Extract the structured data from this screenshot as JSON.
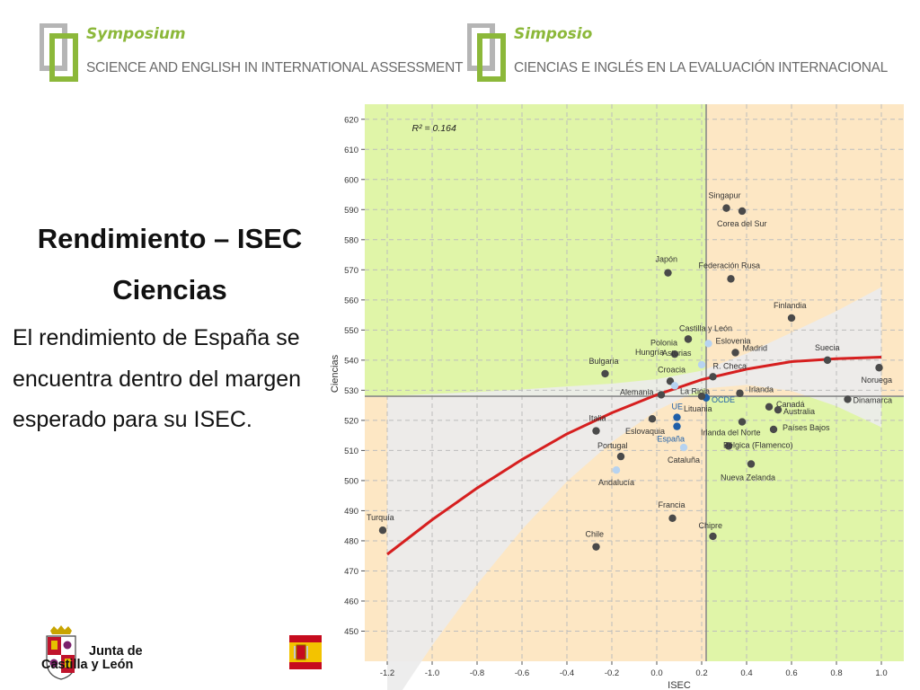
{
  "header": {
    "left": {
      "title": "Symposium",
      "subtitle": "SCIENCE AND ENGLISH IN INTERNATIONAL ASSESSMENT"
    },
    "right": {
      "title": "Simposio",
      "subtitle": "CIENCIAS E INGLÉS EN LA  EVALUACIÓN INTERNACIONAL"
    }
  },
  "slide": {
    "title_line1": "Rendimiento – ISEC",
    "title_line2": "Ciencias",
    "body": "El rendimiento de España se encuentra dentro del margen esperado para su ISEC."
  },
  "footer": {
    "institution_line1": "Junta de",
    "institution_line2": "Castilla y León"
  },
  "colors": {
    "green_zone": "#e0f5a8",
    "orange_zone": "#fde7c4",
    "fit_line": "#d61f1f",
    "point_country": "#4a4a4a",
    "point_region": "#b7d3f0",
    "point_spain": "#1f5fa8",
    "brand_green": "#8cb83a"
  },
  "chart_data": {
    "type": "scatter",
    "xlabel": "ISEC",
    "ylabel": "Ciencias",
    "xlim": [
      -1.3,
      1.1
    ],
    "ylim": [
      440,
      625
    ],
    "x_ticks": [
      "-1.2",
      "-1.0",
      "-0.8",
      "-0.6",
      "-0.4",
      "-0.2",
      "0.0",
      "0.2",
      "0.4",
      "0.6",
      "0.8",
      "1.0"
    ],
    "y_ticks": [
      "450",
      "460",
      "470",
      "480",
      "490",
      "500",
      "510",
      "520",
      "530",
      "540",
      "550",
      "560",
      "570",
      "580",
      "590",
      "600",
      "610",
      "620"
    ],
    "reference_x": 0.22,
    "reference_y": 528,
    "annotation": "R² = 0.164",
    "points": [
      {
        "label": "Singapur",
        "x": 0.31,
        "y": 590.5,
        "kind": "country"
      },
      {
        "label": "Corea del Sur",
        "x": 0.38,
        "y": 589.5,
        "kind": "country"
      },
      {
        "label": "Japón",
        "x": 0.05,
        "y": 569,
        "kind": "country"
      },
      {
        "label": "Federación Rusa",
        "x": 0.33,
        "y": 567,
        "kind": "country"
      },
      {
        "label": "Finlandia",
        "x": 0.6,
        "y": 554,
        "kind": "country"
      },
      {
        "label": "Castilla y León",
        "x": 0.14,
        "y": 547,
        "kind": "country"
      },
      {
        "label": "Polonia",
        "x": 0.14,
        "y": 547,
        "kind": "country"
      },
      {
        "label": "Eslovenia",
        "x": 0.23,
        "y": 545.5,
        "kind": "region"
      },
      {
        "label": "Madrid",
        "x": 0.35,
        "y": 542.5,
        "kind": "country"
      },
      {
        "label": "Hungría",
        "x": 0.08,
        "y": 542,
        "kind": "country"
      },
      {
        "label": "Asturias",
        "x": 0.2,
        "y": 538.5,
        "kind": "region"
      },
      {
        "label": "Suecia",
        "x": 0.76,
        "y": 540,
        "kind": "country"
      },
      {
        "label": "Noruega",
        "x": 0.99,
        "y": 537.5,
        "kind": "country"
      },
      {
        "label": "Bulgaria",
        "x": -0.23,
        "y": 535.5,
        "kind": "country"
      },
      {
        "label": "Croacia",
        "x": 0.06,
        "y": 533,
        "kind": "country"
      },
      {
        "label": "R. Checa",
        "x": 0.25,
        "y": 534.5,
        "kind": "country"
      },
      {
        "label": "La Rioja",
        "x": 0.08,
        "y": 531.5,
        "kind": "region"
      },
      {
        "label": "Irlanda",
        "x": 0.37,
        "y": 529,
        "kind": "country"
      },
      {
        "label": "Alemania",
        "x": 0.02,
        "y": 528.5,
        "kind": "country"
      },
      {
        "label": "OCDE",
        "x": 0.22,
        "y": 527.5,
        "kind": "spain"
      },
      {
        "label": "Lituania",
        "x": 0.2,
        "y": 528,
        "kind": "country"
      },
      {
        "label": "Dinamarca",
        "x": 0.85,
        "y": 527,
        "kind": "country"
      },
      {
        "label": "Canadá",
        "x": 0.5,
        "y": 524.5,
        "kind": "country"
      },
      {
        "label": "Australia",
        "x": 0.54,
        "y": 523.5,
        "kind": "country"
      },
      {
        "label": "UE",
        "x": 0.09,
        "y": 521,
        "kind": "spain"
      },
      {
        "label": "Italia",
        "x": -0.27,
        "y": 516.5,
        "kind": "country"
      },
      {
        "label": "Eslovaquia",
        "x": -0.02,
        "y": 520.5,
        "kind": "country"
      },
      {
        "label": "Irlanda del Norte",
        "x": 0.38,
        "y": 519.5,
        "kind": "country"
      },
      {
        "label": "España",
        "x": 0.09,
        "y": 518,
        "kind": "spain"
      },
      {
        "label": "Países Bajos",
        "x": 0.52,
        "y": 517,
        "kind": "country"
      },
      {
        "label": "Bélgica (Flamenco)",
        "x": 0.32,
        "y": 511.5,
        "kind": "country"
      },
      {
        "label": "Cataluña",
        "x": 0.12,
        "y": 511,
        "kind": "region"
      },
      {
        "label": "Portugal",
        "x": -0.16,
        "y": 508,
        "kind": "country"
      },
      {
        "label": "Nueva Zelanda",
        "x": 0.42,
        "y": 505.5,
        "kind": "country"
      },
      {
        "label": "Andalucía",
        "x": -0.18,
        "y": 503.5,
        "kind": "region"
      },
      {
        "label": "Francia",
        "x": 0.07,
        "y": 487.5,
        "kind": "country"
      },
      {
        "label": "Turquía",
        "x": -1.22,
        "y": 483.5,
        "kind": "country"
      },
      {
        "label": "Chipre",
        "x": 0.25,
        "y": 481.5,
        "kind": "country"
      },
      {
        "label": "Chile",
        "x": -0.27,
        "y": 478,
        "kind": "country"
      }
    ],
    "fit_curve": [
      {
        "x": -1.2,
        "y": 475.5
      },
      {
        "x": -1.0,
        "y": 487
      },
      {
        "x": -0.8,
        "y": 497.5
      },
      {
        "x": -0.6,
        "y": 507
      },
      {
        "x": -0.4,
        "y": 515.5
      },
      {
        "x": -0.2,
        "y": 522.5
      },
      {
        "x": 0.0,
        "y": 528.5
      },
      {
        "x": 0.2,
        "y": 533.5
      },
      {
        "x": 0.4,
        "y": 537
      },
      {
        "x": 0.6,
        "y": 539.5
      },
      {
        "x": 0.8,
        "y": 540.5
      },
      {
        "x": 1.0,
        "y": 541
      }
    ]
  }
}
